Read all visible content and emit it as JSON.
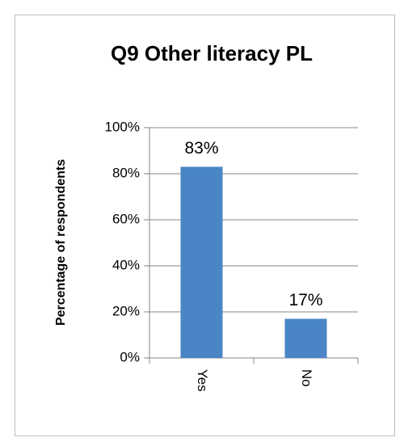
{
  "chart_data": {
    "type": "bar",
    "title": "Q9 Other literacy PL",
    "y_label": "Percentage of respondents",
    "categories": [
      "Yes",
      "No"
    ],
    "values": [
      83,
      17
    ],
    "value_labels": [
      "83%",
      "17%"
    ],
    "color": "#4a86c6",
    "ylim": [
      0,
      100
    ],
    "yticks": [
      {
        "value": 0,
        "label": "0%"
      },
      {
        "value": 20,
        "label": "20%"
      },
      {
        "value": 40,
        "label": "40%"
      },
      {
        "value": 60,
        "label": "60%"
      },
      {
        "value": 80,
        "label": "80%"
      },
      {
        "value": 100,
        "label": "100%"
      }
    ],
    "grid": true
  }
}
